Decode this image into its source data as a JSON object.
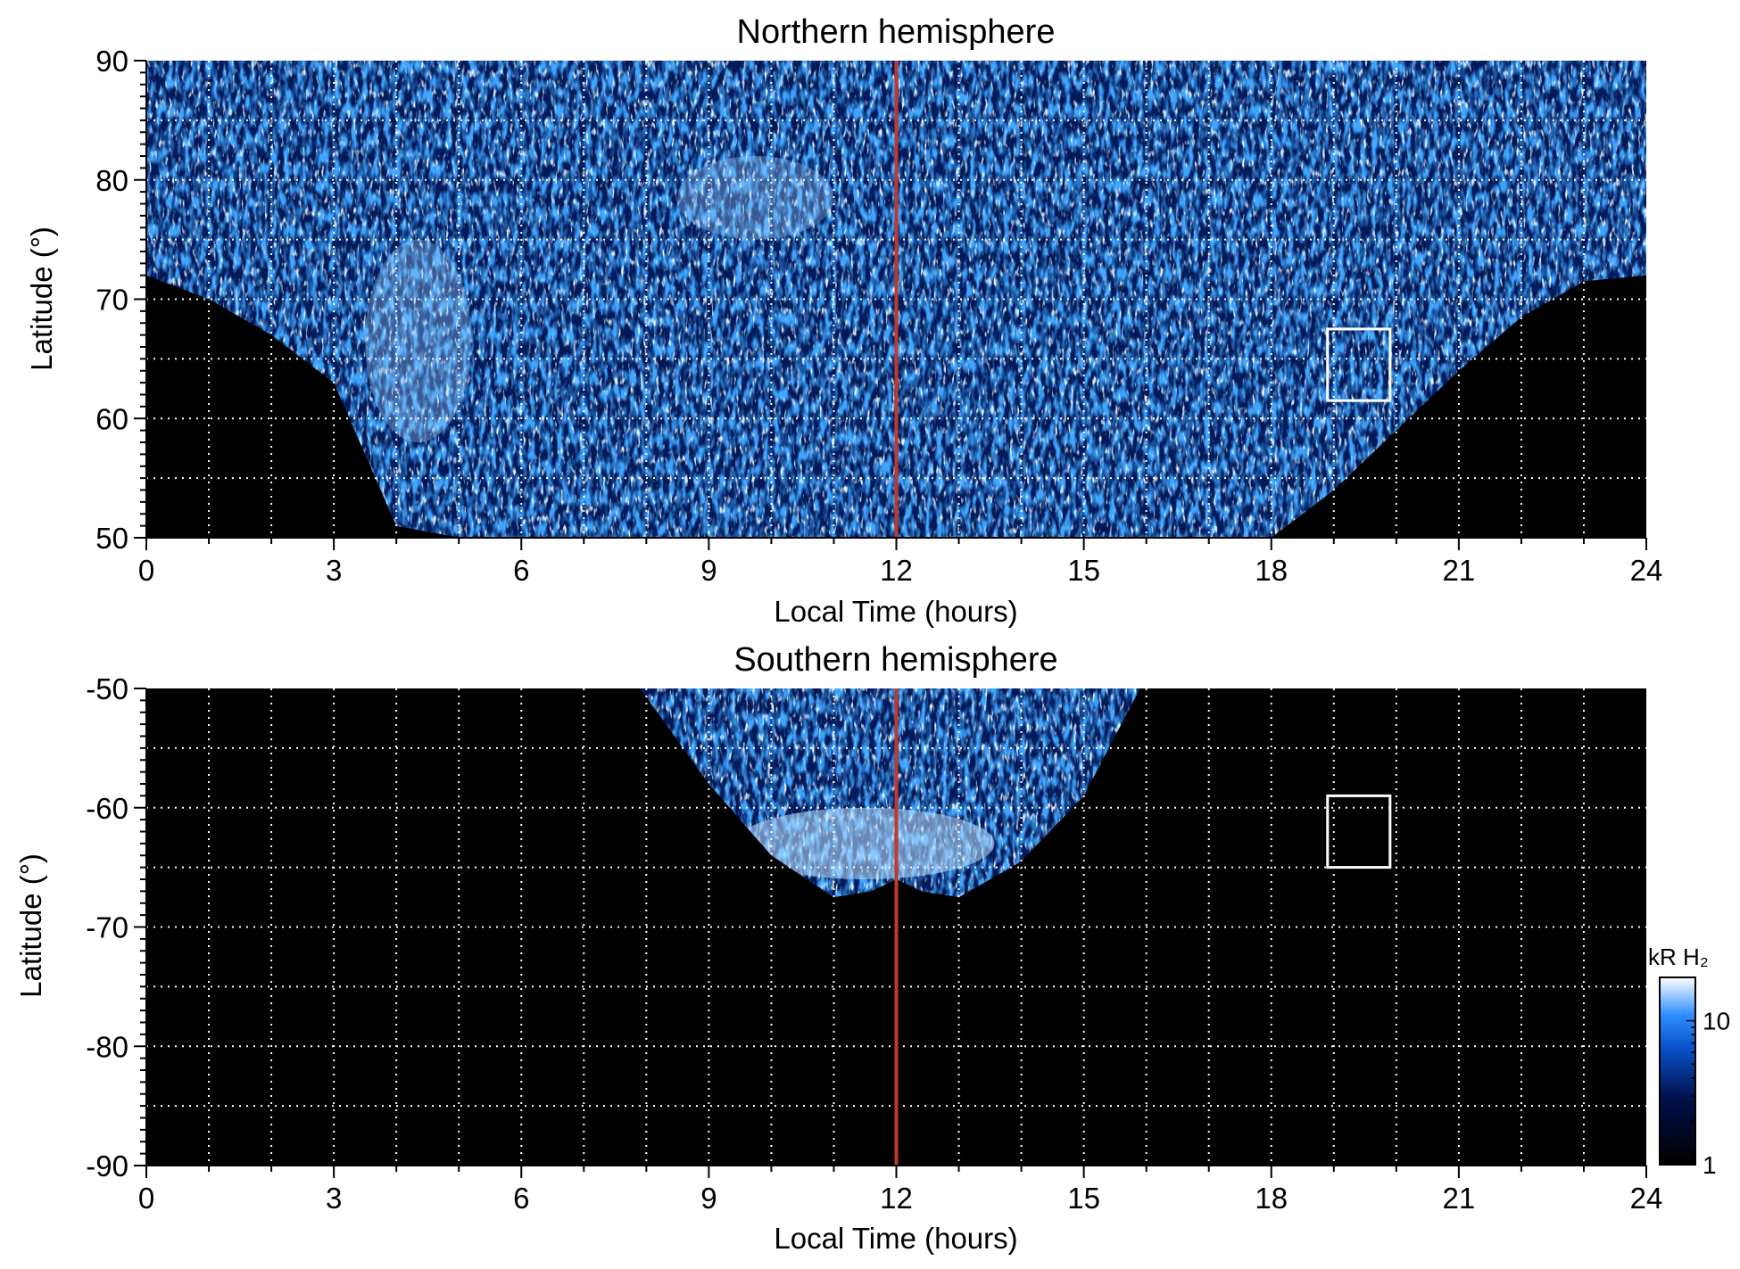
{
  "chart_data": [
    {
      "type": "heatmap",
      "title": "Northern hemisphere",
      "xlabel": "Local Time (hours)",
      "ylabel": "Latitude (°)",
      "xlim": [
        0,
        24
      ],
      "ylim": [
        50,
        90
      ],
      "x_ticks": [
        "0",
        "3",
        "6",
        "9",
        "12",
        "15",
        "18",
        "21",
        "24"
      ],
      "x_tick_values": [
        0,
        3,
        6,
        9,
        12,
        15,
        18,
        21,
        24
      ],
      "y_ticks": [
        "50",
        "60",
        "70",
        "80",
        "90"
      ],
      "y_tick_values": [
        50,
        60,
        70,
        80,
        90
      ],
      "grid": true,
      "grid_x_step": 1,
      "grid_y_step": 5,
      "reference_line": {
        "x": 12,
        "color": "#c0392b"
      },
      "highlight_box": {
        "x0": 18.9,
        "x1": 19.9,
        "y0": 61.5,
        "y1": 67.5
      },
      "data_extent": {
        "description_free": true,
        "lower_boundary_lt": [
          0,
          1,
          2,
          3,
          4,
          5,
          6,
          8,
          10,
          12,
          14,
          16,
          18,
          19,
          20,
          21,
          22,
          23,
          24
        ],
        "lower_boundary_lat": [
          72,
          70,
          67,
          63,
          51,
          50,
          50,
          50,
          50,
          50,
          50,
          50,
          50,
          54,
          59,
          64,
          68.5,
          71.5,
          72
        ]
      },
      "bright_features": [
        {
          "lt_range": [
            3.5,
            5.2
          ],
          "lat_range": [
            58,
            75
          ]
        },
        {
          "lt_range": [
            8.5,
            11
          ],
          "lat_range": [
            75,
            82
          ]
        }
      ]
    },
    {
      "type": "heatmap",
      "title": "Southern hemisphere",
      "xlabel": "Local Time (hours)",
      "ylabel": "Latitude (°)",
      "xlim": [
        0,
        24
      ],
      "ylim": [
        -90,
        -50
      ],
      "x_ticks": [
        "0",
        "3",
        "6",
        "9",
        "12",
        "15",
        "18",
        "21",
        "24"
      ],
      "x_tick_values": [
        0,
        3,
        6,
        9,
        12,
        15,
        18,
        21,
        24
      ],
      "y_ticks": [
        "-50",
        "-60",
        "-70",
        "-80",
        "-90"
      ],
      "y_tick_values": [
        -50,
        -60,
        -70,
        -80,
        -90
      ],
      "grid": true,
      "grid_x_step": 1,
      "grid_y_step": 5,
      "reference_line": {
        "x": 12,
        "color": "#c0392b"
      },
      "highlight_box": {
        "x0": 18.9,
        "x1": 19.9,
        "y0": -65,
        "y1": -59
      },
      "data_extent": {
        "lt_range": [
          7.9,
          15.9
        ],
        "bottom_boundary_lt": [
          7.9,
          9,
          10,
          11,
          11.6,
          12,
          12.4,
          13,
          14,
          15,
          15.9
        ],
        "bottom_boundary_lat": [
          -50,
          -58,
          -64,
          -67.5,
          -67,
          -66,
          -67,
          -67.5,
          -64.5,
          -59,
          -50
        ]
      },
      "bright_band": {
        "lat_range": [
          -60,
          -66
        ],
        "lt_range": [
          10,
          13
        ]
      }
    }
  ],
  "colorbar": {
    "label": "kR H₂",
    "ticks": [
      "1",
      "10"
    ],
    "tick_values": [
      1,
      10
    ],
    "range": [
      1,
      20
    ],
    "scale": "log",
    "colors": [
      "#000000",
      "#00104a",
      "#0a50c8",
      "#2f8fff",
      "#ffffff"
    ]
  }
}
